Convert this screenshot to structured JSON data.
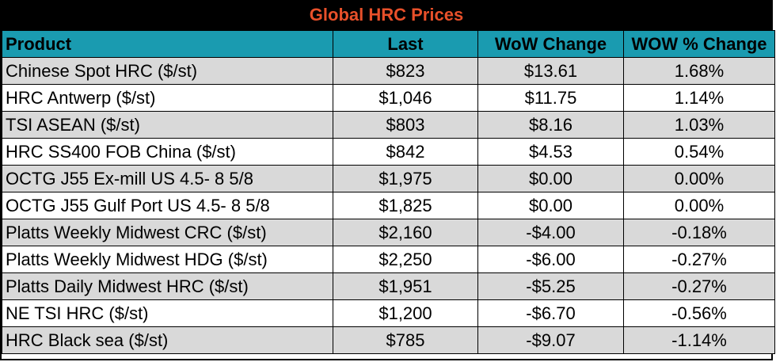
{
  "title": "Global HRC Prices",
  "colors": {
    "title_bg": "#000000",
    "title_text": "#e8502a",
    "header_bg": "#1a9bb0",
    "row_alt_bg": "#d9d9d9",
    "row_bg": "#ffffff"
  },
  "columns": [
    "Product",
    "Last",
    "WoW Change",
    "WOW % Change"
  ],
  "rows": [
    {
      "product": "Chinese Spot HRC ($/st)",
      "last": "$823",
      "wow_change": "$13.61",
      "wow_pct": "1.68%"
    },
    {
      "product": "HRC Antwerp ($/st)",
      "last": "$1,046",
      "wow_change": "$11.75",
      "wow_pct": "1.14%"
    },
    {
      "product": "TSI ASEAN ($/st)",
      "last": "$803",
      "wow_change": "$8.16",
      "wow_pct": "1.03%"
    },
    {
      "product": "HRC SS400 FOB China ($/st)",
      "last": "$842",
      "wow_change": "$4.53",
      "wow_pct": "0.54%"
    },
    {
      "product": "OCTG J55 Ex-mill US 4.5- 8 5/8",
      "last": "$1,975",
      "wow_change": "$0.00",
      "wow_pct": "0.00%"
    },
    {
      "product": "OCTG J55 Gulf Port US 4.5- 8 5/8",
      "last": "$1,825",
      "wow_change": "$0.00",
      "wow_pct": "0.00%"
    },
    {
      "product": "Platts Weekly Midwest CRC ($/st)",
      "last": "$2,160",
      "wow_change": "-$4.00",
      "wow_pct": "-0.18%"
    },
    {
      "product": "Platts Weekly Midwest HDG ($/st)",
      "last": "$2,250",
      "wow_change": "-$6.00",
      "wow_pct": "-0.27%"
    },
    {
      "product": "Platts Daily Midwest HRC ($/st)",
      "last": "$1,951",
      "wow_change": "-$5.25",
      "wow_pct": "-0.27%"
    },
    {
      "product": "NE TSI HRC ($/st)",
      "last": "$1,200",
      "wow_change": "-$6.70",
      "wow_pct": "-0.56%"
    },
    {
      "product": "HRC Black sea ($/st)",
      "last": "$785",
      "wow_change": "-$9.07",
      "wow_pct": "-1.14%"
    }
  ]
}
